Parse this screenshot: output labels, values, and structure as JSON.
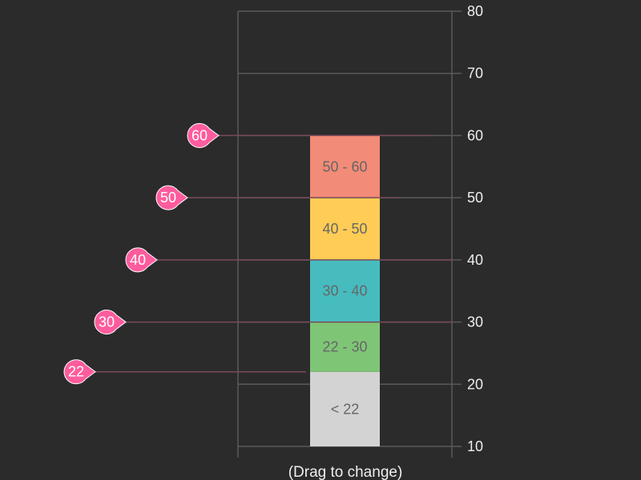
{
  "chart_data": {
    "type": "bar",
    "title": "",
    "xlabel": "(Drag to change)",
    "ylabel": "",
    "ylim": [
      10,
      80
    ],
    "yticks": [
      10,
      20,
      30,
      40,
      50,
      60,
      70,
      80
    ],
    "grid": true,
    "axis_position": "right",
    "segments": [
      {
        "label": "< 22",
        "from": 10,
        "to": 22,
        "color": "#d3d3d3"
      },
      {
        "label": "22 - 30",
        "from": 22,
        "to": 30,
        "color": "#7ec675"
      },
      {
        "label": "30 - 40",
        "from": 30,
        "to": 40,
        "color": "#47bcbf"
      },
      {
        "label": "40 - 50",
        "from": 40,
        "to": 50,
        "color": "#ffcc55"
      },
      {
        "label": "50 - 60",
        "from": 50,
        "to": 60,
        "color": "#f28b77"
      }
    ],
    "handles": [
      {
        "label": "60",
        "value": 60
      },
      {
        "label": "50",
        "value": 50
      },
      {
        "label": "40",
        "value": 40
      },
      {
        "label": "30",
        "value": 30
      },
      {
        "label": "22",
        "value": 22
      }
    ],
    "handle_color": "#ff5c9d",
    "line_color": "#7a4a5a",
    "grid_color": "#5a5a5a",
    "text_color": "#eeeeee"
  }
}
